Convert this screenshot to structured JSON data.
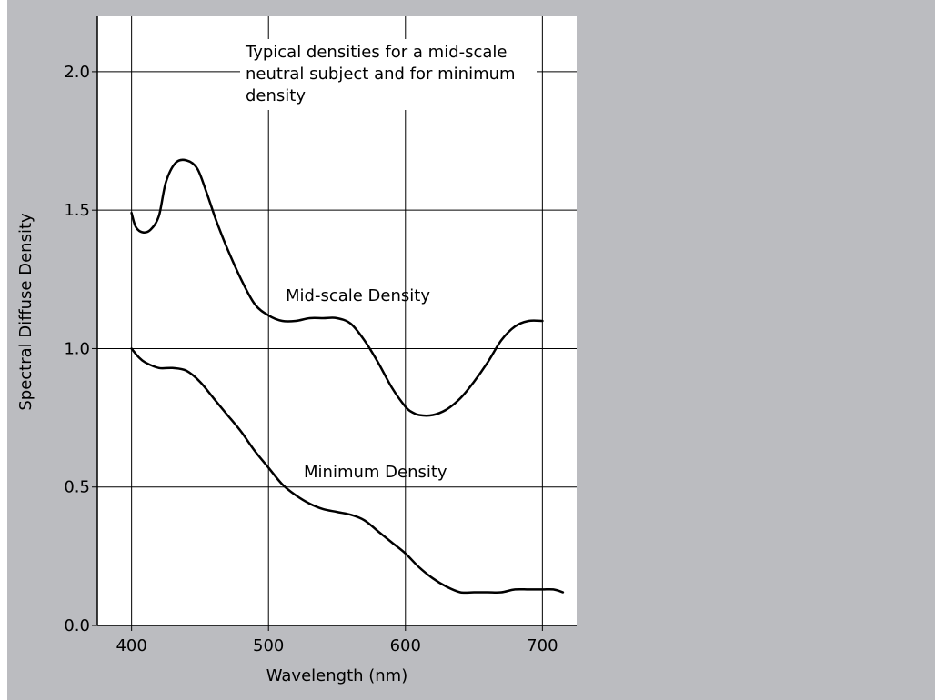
{
  "chart_data": {
    "type": "line",
    "title": "",
    "annotation": [
      "Typical densities for a mid-scale",
      "neutral subject and for minimum",
      "density"
    ],
    "xlabel": "Wavelength (nm)",
    "ylabel": "Spectral Diffuse Density",
    "xlim": [
      375,
      725
    ],
    "ylim": [
      0,
      2.2
    ],
    "xticks": [
      "400",
      "500",
      "600",
      "700"
    ],
    "yticks": [
      "0.0",
      "0.5",
      "1.0",
      "1.5",
      "2.0"
    ],
    "grid": true,
    "series": [
      {
        "name": "Mid-scale Density",
        "x": [
          400,
          403,
          408,
          414,
          420,
          425,
          432,
          440,
          448,
          455,
          462,
          470,
          480,
          490,
          500,
          510,
          520,
          530,
          540,
          550,
          560,
          570,
          580,
          590,
          600,
          605,
          610,
          620,
          630,
          640,
          650,
          660,
          670,
          680,
          690,
          700
        ],
        "y": [
          1.49,
          1.44,
          1.42,
          1.43,
          1.48,
          1.6,
          1.67,
          1.68,
          1.65,
          1.56,
          1.46,
          1.36,
          1.25,
          1.16,
          1.12,
          1.1,
          1.1,
          1.11,
          1.11,
          1.11,
          1.09,
          1.03,
          0.95,
          0.86,
          0.79,
          0.77,
          0.76,
          0.76,
          0.78,
          0.82,
          0.88,
          0.95,
          1.03,
          1.08,
          1.1,
          1.1
        ]
      },
      {
        "name": "Minimum Density",
        "x": [
          400,
          405,
          410,
          420,
          430,
          440,
          450,
          460,
          470,
          480,
          490,
          500,
          510,
          520,
          530,
          540,
          550,
          560,
          570,
          580,
          590,
          600,
          610,
          620,
          630,
          640,
          650,
          660,
          670,
          680,
          690,
          700,
          708,
          715
        ],
        "y": [
          1.0,
          0.97,
          0.95,
          0.93,
          0.93,
          0.92,
          0.88,
          0.82,
          0.76,
          0.7,
          0.63,
          0.57,
          0.51,
          0.47,
          0.44,
          0.42,
          0.41,
          0.4,
          0.38,
          0.34,
          0.3,
          0.26,
          0.21,
          0.17,
          0.14,
          0.12,
          0.12,
          0.12,
          0.12,
          0.13,
          0.13,
          0.13,
          0.13,
          0.12
        ]
      }
    ]
  }
}
